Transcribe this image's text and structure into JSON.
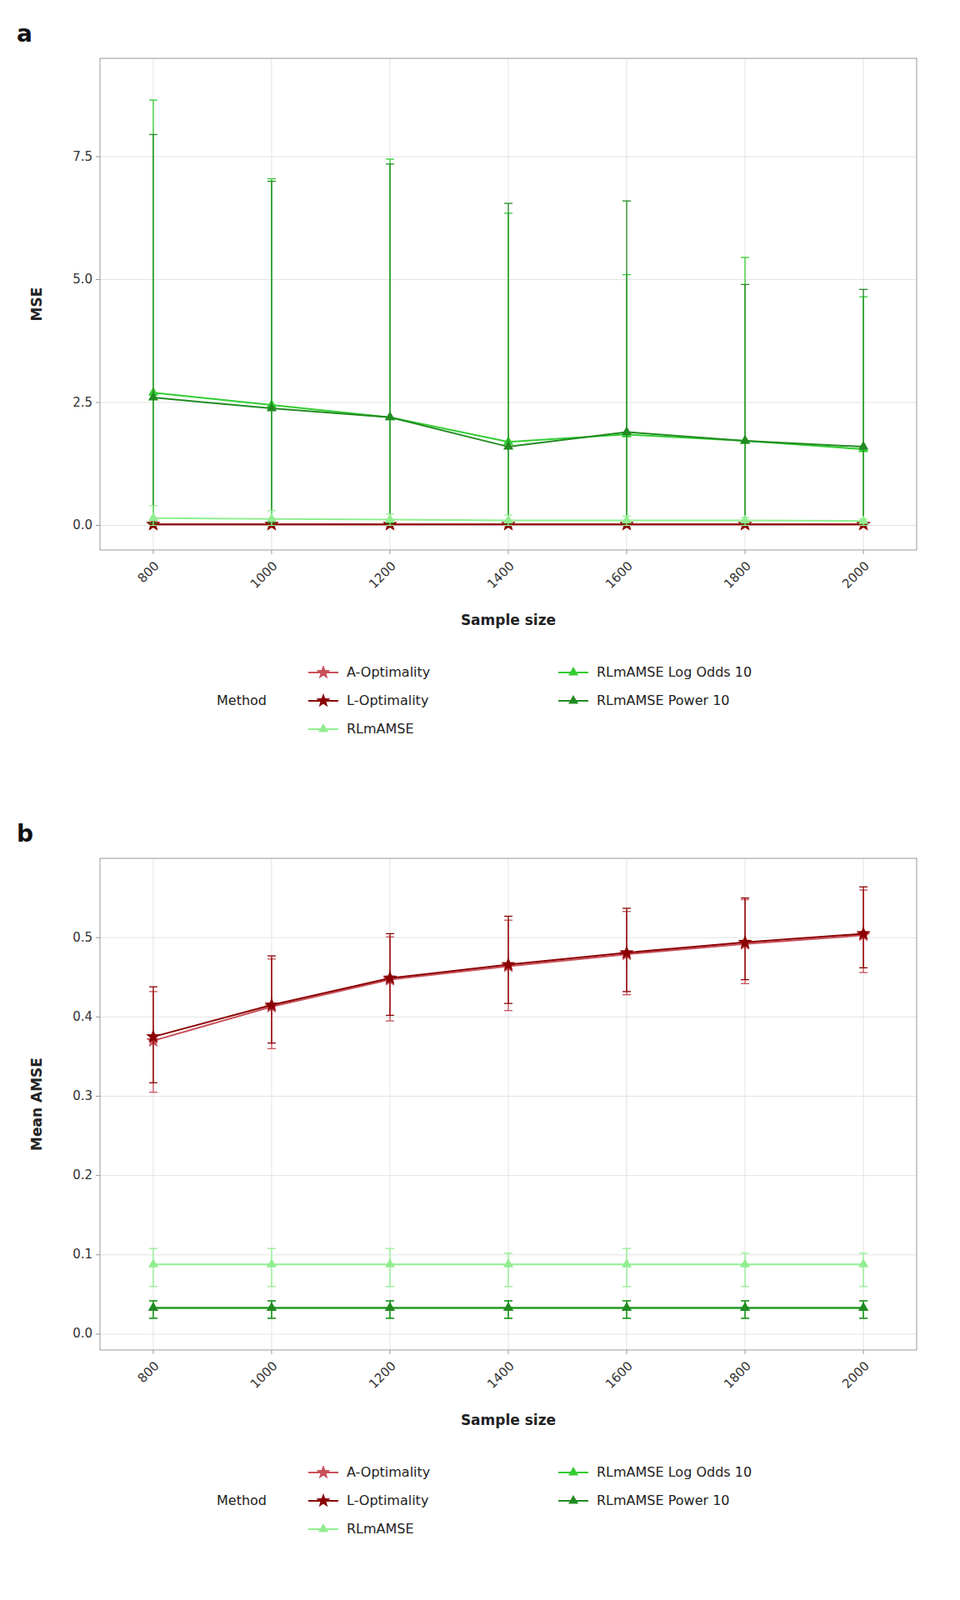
{
  "chart_data": [
    {
      "type": "line",
      "title": "a",
      "x_label": "Sample size",
      "y_label": "MSE",
      "x": [
        800,
        1000,
        1200,
        1400,
        1600,
        1800,
        2000
      ],
      "xlim": [
        710,
        2090
      ],
      "xticks": [
        800,
        1000,
        1200,
        1400,
        1600,
        1800,
        2000
      ],
      "ylim": [
        -0.5,
        9.5
      ],
      "yticks": [
        {
          "value": 0,
          "label": "0.0"
        },
        2.5,
        {
          "value": 5,
          "label": "5.0"
        },
        7.5
      ],
      "grid": true,
      "legend": "bottom",
      "legend_title": "Method",
      "series": [
        {
          "name": "A-Optimality",
          "color": "#C8505A",
          "marker": "star",
          "values": [
            0.02,
            0.02,
            0.02,
            0.02,
            0.02,
            0.02,
            0.02
          ],
          "lo": [
            0.0,
            0.0,
            0.0,
            0.0,
            0.0,
            0.0,
            0.0
          ],
          "hi": [
            0.1,
            0.08,
            0.07,
            0.06,
            0.06,
            0.05,
            0.05
          ]
        },
        {
          "name": "RLmAMSE Log Odds 10",
          "color": "#32CD32",
          "marker": "triangle",
          "values": [
            2.7,
            2.45,
            2.2,
            1.7,
            1.85,
            1.72,
            1.55
          ],
          "lo": [
            0.05,
            0.05,
            0.05,
            0.05,
            0.05,
            0.05,
            0.05
          ],
          "hi": [
            8.65,
            7.05,
            7.45,
            6.35,
            5.1,
            5.45,
            4.65
          ]
        },
        {
          "name": "L-Optimality",
          "color": "#8B0000",
          "marker": "star",
          "values": [
            0.02,
            0.02,
            0.02,
            0.02,
            0.02,
            0.02,
            0.02
          ],
          "lo": [
            0.0,
            0.0,
            0.0,
            0.0,
            0.0,
            0.0,
            0.0
          ],
          "hi": [
            0.1,
            0.08,
            0.07,
            0.06,
            0.06,
            0.05,
            0.05
          ]
        },
        {
          "name": "RLmAMSE Power 10",
          "color": "#228B22",
          "marker": "triangle",
          "values": [
            2.6,
            2.38,
            2.2,
            1.6,
            1.9,
            1.72,
            1.6
          ],
          "lo": [
            0.05,
            0.05,
            0.05,
            0.05,
            0.05,
            0.05,
            0.05
          ],
          "hi": [
            7.95,
            7.0,
            7.35,
            6.55,
            6.6,
            4.9,
            4.8
          ]
        },
        {
          "name": "RLmAMSE",
          "color": "#90EE90",
          "marker": "triangle",
          "values": [
            0.15,
            0.13,
            0.12,
            0.1,
            0.1,
            0.1,
            0.09
          ],
          "lo": [
            0.0,
            0.0,
            0.0,
            0.0,
            0.0,
            0.0,
            0.0
          ],
          "hi": [
            0.4,
            0.3,
            0.23,
            0.21,
            0.19,
            0.16,
            0.13
          ]
        }
      ]
    },
    {
      "type": "line",
      "title": "b",
      "x_label": "Sample size",
      "y_label": "Mean AMSE",
      "x": [
        800,
        1000,
        1200,
        1400,
        1600,
        1800,
        2000
      ],
      "xlim": [
        710,
        2090
      ],
      "xticks": [
        800,
        1000,
        1200,
        1400,
        1600,
        1800,
        2000
      ],
      "ylim": [
        -0.02,
        0.6
      ],
      "yticks": [
        {
          "value": 0,
          "label": "0.0"
        },
        0.1,
        0.2,
        0.3,
        0.4,
        0.5
      ],
      "grid": true,
      "legend": "bottom",
      "legend_title": "Method",
      "series": [
        {
          "name": "A-Optimality",
          "color": "#C8505A",
          "marker": "star",
          "values": [
            0.37,
            0.413,
            0.447,
            0.464,
            0.479,
            0.492,
            0.503
          ],
          "lo": [
            0.305,
            0.36,
            0.395,
            0.408,
            0.428,
            0.442,
            0.456
          ],
          "hi": [
            0.432,
            0.473,
            0.501,
            0.522,
            0.533,
            0.548,
            0.56
          ]
        },
        {
          "name": "RLmAMSE Log Odds 10",
          "color": "#32CD32",
          "marker": "triangle",
          "values": [
            0.033,
            0.033,
            0.033,
            0.033,
            0.033,
            0.033,
            0.033
          ],
          "lo": [
            0.02,
            0.02,
            0.02,
            0.02,
            0.02,
            0.02,
            0.02
          ],
          "hi": [
            0.042,
            0.042,
            0.042,
            0.042,
            0.042,
            0.042,
            0.042
          ]
        },
        {
          "name": "L-Optimality",
          "color": "#8B0000",
          "marker": "star",
          "values": [
            0.375,
            0.415,
            0.449,
            0.466,
            0.481,
            0.494,
            0.505
          ],
          "lo": [
            0.317,
            0.367,
            0.402,
            0.417,
            0.432,
            0.447,
            0.462
          ],
          "hi": [
            0.438,
            0.477,
            0.505,
            0.527,
            0.537,
            0.55,
            0.564
          ]
        },
        {
          "name": "RLmAMSE Power 10",
          "color": "#228B22",
          "marker": "triangle",
          "values": [
            0.033,
            0.033,
            0.033,
            0.033,
            0.033,
            0.033,
            0.033
          ],
          "lo": [
            0.02,
            0.02,
            0.02,
            0.02,
            0.02,
            0.02,
            0.02
          ],
          "hi": [
            0.042,
            0.042,
            0.042,
            0.042,
            0.042,
            0.042,
            0.042
          ]
        },
        {
          "name": "RLmAMSE",
          "color": "#90EE90",
          "marker": "triangle",
          "values": [
            0.088,
            0.088,
            0.088,
            0.088,
            0.088,
            0.088,
            0.088
          ],
          "lo": [
            0.06,
            0.06,
            0.06,
            0.06,
            0.06,
            0.06,
            0.06
          ],
          "hi": [
            0.108,
            0.108,
            0.108,
            0.102,
            0.108,
            0.102,
            0.102
          ]
        }
      ]
    }
  ]
}
